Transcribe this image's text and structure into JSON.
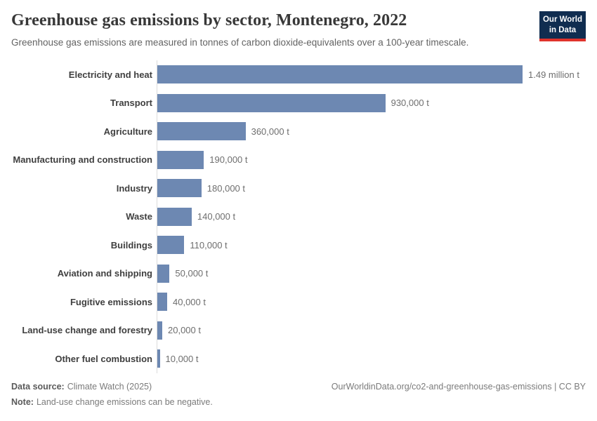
{
  "header": {
    "title": "Greenhouse gas emissions by sector, Montenegro, 2022",
    "subtitle": "Greenhouse gas emissions are measured in tonnes of carbon dioxide-equivalents over a 100-year timescale.",
    "logo_line1": "Our World",
    "logo_line2": "in Data"
  },
  "chart_data": {
    "type": "bar",
    "orientation": "horizontal",
    "title": "Greenhouse gas emissions by sector, Montenegro, 2022",
    "categories": [
      "Electricity and heat",
      "Transport",
      "Agriculture",
      "Manufacturing and construction",
      "Industry",
      "Waste",
      "Buildings",
      "Aviation and shipping",
      "Fugitive emissions",
      "Land-use change and forestry",
      "Other fuel combustion"
    ],
    "values": [
      1490000,
      930000,
      360000,
      190000,
      180000,
      140000,
      110000,
      50000,
      40000,
      20000,
      10000
    ],
    "value_labels": [
      "1.49 million t",
      "930,000 t",
      "360,000 t",
      "190,000 t",
      "180,000 t",
      "140,000 t",
      "110,000 t",
      "50,000 t",
      "40,000 t",
      "20,000 t",
      "10,000 t"
    ],
    "value_suffix": "t",
    "xlim": [
      0,
      1490000
    ],
    "grid": false,
    "legend": false,
    "bar_color": "#6d88b2"
  },
  "footer": {
    "data_source_label": "Data source:",
    "data_source": "Climate Watch (2025)",
    "note_label": "Note:",
    "note": "Land-use change emissions can be negative.",
    "credit": "OurWorldinData.org/co2-and-greenhouse-gas-emissions | CC BY"
  },
  "colors": {
    "bar": "#6d88b2",
    "axis_line": "#dcdcdc",
    "logo_bg": "#102d50",
    "logo_accent": "#e0332c",
    "title_text": "#383838",
    "subtitle_text": "#636363",
    "label_text": "#3f3f3f",
    "value_text": "#6e6e6e"
  }
}
